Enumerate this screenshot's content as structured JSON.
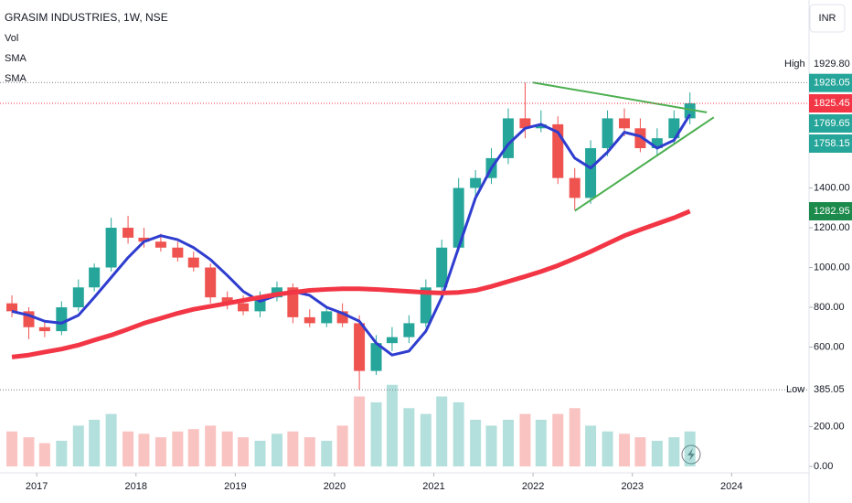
{
  "chart_data": {
    "type": "candlestick",
    "title": "GRASIM INDUSTRIES, 1W, NSE",
    "indicators": [
      "Vol",
      "SMA",
      "SMA"
    ],
    "currency": "INR",
    "xlim": [
      2016.63,
      2024.78
    ],
    "xticks": [
      2017,
      2018,
      2019,
      2020,
      2021,
      2022,
      2023,
      2024
    ],
    "ylim": [
      0,
      2345
    ],
    "yticks": [
      {
        "value": 0,
        "label": "0.00"
      },
      {
        "value": 200,
        "label": "200.00"
      },
      {
        "value": 600,
        "label": "600.00"
      },
      {
        "value": 800,
        "label": "800.00"
      },
      {
        "value": 1000,
        "label": "1000.00"
      },
      {
        "value": 1200,
        "label": "1200.00"
      },
      {
        "value": 1400,
        "label": "1400.00"
      }
    ],
    "y2lim": [
      0,
      400
    ],
    "up_color": "#26a69a",
    "down_color": "#ef5350",
    "x": [
      2016.75,
      2016.92,
      2017.08,
      2017.25,
      2017.42,
      2017.58,
      2017.75,
      2017.92,
      2018.08,
      2018.25,
      2018.42,
      2018.58,
      2018.75,
      2018.92,
      2019.08,
      2019.25,
      2019.42,
      2019.58,
      2019.75,
      2019.92,
      2020.08,
      2020.25,
      2020.42,
      2020.58,
      2020.75,
      2020.92,
      2021.08,
      2021.25,
      2021.42,
      2021.58,
      2021.75,
      2021.92,
      2022.08,
      2022.25,
      2022.42,
      2022.58,
      2022.75,
      2022.92,
      2023.08,
      2023.25,
      2023.42,
      2023.58
    ],
    "open": [
      820,
      780,
      700,
      680,
      800,
      900,
      1000,
      1200,
      1150,
      1130,
      1100,
      1050,
      1000,
      850,
      820,
      780,
      850,
      900,
      750,
      720,
      780,
      720,
      480,
      620,
      650,
      720,
      900,
      1100,
      1400,
      1450,
      1550,
      1750,
      1700,
      1720,
      1450,
      1350,
      1600,
      1750,
      1700,
      1600,
      1650,
      1750
    ],
    "high": [
      860,
      800,
      730,
      830,
      940,
      1020,
      1250,
      1260,
      1200,
      1170,
      1130,
      1080,
      1020,
      880,
      860,
      880,
      930,
      920,
      790,
      800,
      820,
      760,
      660,
      700,
      760,
      940,
      1140,
      1450,
      1490,
      1600,
      1800,
      1929.8,
      1790,
      1760,
      1500,
      1640,
      1790,
      1800,
      1750,
      1700,
      1790,
      1880
    ],
    "low": [
      750,
      640,
      650,
      660,
      780,
      880,
      980,
      1120,
      1100,
      1080,
      1030,
      980,
      820,
      790,
      760,
      750,
      830,
      720,
      700,
      700,
      700,
      385.05,
      460,
      580,
      620,
      700,
      880,
      1080,
      1360,
      1420,
      1520,
      1650,
      1680,
      1420,
      1290,
      1320,
      1560,
      1660,
      1580,
      1560,
      1620,
      1720
    ],
    "close": [
      780,
      700,
      680,
      800,
      900,
      1000,
      1200,
      1150,
      1130,
      1100,
      1050,
      1000,
      850,
      820,
      780,
      850,
      900,
      750,
      720,
      780,
      720,
      480,
      620,
      650,
      720,
      900,
      1100,
      1400,
      1450,
      1550,
      1750,
      1700,
      1720,
      1450,
      1350,
      1600,
      1750,
      1700,
      1600,
      1650,
      1750,
      1825.45
    ],
    "volume": [
      30,
      25,
      20,
      22,
      35,
      40,
      45,
      30,
      28,
      25,
      30,
      32,
      35,
      30,
      25,
      22,
      28,
      30,
      25,
      22,
      35,
      60,
      55,
      70,
      50,
      45,
      60,
      55,
      40,
      35,
      40,
      45,
      40,
      45,
      50,
      35,
      30,
      28,
      25,
      22,
      25,
      30
    ],
    "series": [
      {
        "name": "SMA",
        "color": "#2f3dcf",
        "values": [
          780,
          760,
          730,
          720,
          760,
          850,
          950,
          1050,
          1130,
          1160,
          1140,
          1100,
          1040,
          960,
          880,
          830,
          860,
          880,
          860,
          800,
          770,
          730,
          620,
          560,
          580,
          680,
          850,
          1100,
          1350,
          1500,
          1620,
          1700,
          1720,
          1680,
          1550,
          1500,
          1580,
          1680,
          1660,
          1600,
          1640,
          1769.65
        ]
      },
      {
        "name": "SMA",
        "color": "#f23645",
        "values": [
          550,
          560,
          575,
          590,
          610,
          635,
          660,
          690,
          720,
          745,
          770,
          790,
          805,
          820,
          835,
          850,
          865,
          875,
          885,
          890,
          893,
          893,
          890,
          885,
          880,
          875,
          872,
          875,
          885,
          905,
          930,
          955,
          980,
          1010,
          1045,
          1080,
          1120,
          1160,
          1190,
          1220,
          1250,
          1282.95
        ]
      }
    ],
    "trendlines": [
      {
        "color": "#4caf50",
        "x": [
          2022.0,
          2023.75
        ],
        "y": [
          1930,
          1780
        ]
      },
      {
        "color": "#4caf50",
        "x": [
          2022.42,
          2023.82
        ],
        "y": [
          1285,
          1755
        ]
      }
    ],
    "high_line": {
      "label": "High",
      "value": 1929.8,
      "value_label": "1929.80"
    },
    "low_line": {
      "label": "Low",
      "value": 385.05
    },
    "price_labels": [
      {
        "value": 1928.05,
        "color": "#26a69a"
      },
      {
        "value": 1825.45,
        "color": "#f23645"
      },
      {
        "value": 1769.65,
        "color": "#26a69a"
      },
      {
        "value": 1758.15,
        "color": "#26a69a"
      },
      {
        "value": 1282.95,
        "color": "#1b8a4a"
      }
    ]
  }
}
